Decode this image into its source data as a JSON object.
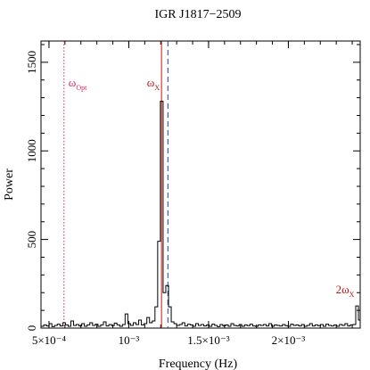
{
  "chart_data": {
    "type": "line",
    "title": "IGR J1817−2509",
    "xlabel": "Frequency (Hz)",
    "ylabel": "Power",
    "xlim": [
      0.00045,
      0.00245
    ],
    "ylim": [
      0,
      1620
    ],
    "x_ticks": [
      {
        "value": 0.0005,
        "label": "5×10⁻⁴"
      },
      {
        "value": 0.001,
        "label": "10⁻³"
      },
      {
        "value": 0.0015,
        "label": "1.5×10⁻³"
      },
      {
        "value": 0.002,
        "label": "2×10⁻³"
      }
    ],
    "y_ticks": [
      {
        "value": 0,
        "label": "0"
      },
      {
        "value": 500,
        "label": "500"
      },
      {
        "value": 1000,
        "label": "1000"
      },
      {
        "value": 1500,
        "label": "1500"
      }
    ],
    "grid": false,
    "series": [
      {
        "style": "histogram-step",
        "color": "#000000",
        "x": [
          0.00045,
          0.000467,
          0.000484,
          0.000501,
          0.000518,
          0.000535,
          0.000552,
          0.000569,
          0.000586,
          0.000603,
          0.00062,
          0.000637,
          0.000654,
          0.000671,
          0.000688,
          0.000705,
          0.000722,
          0.000739,
          0.000756,
          0.000773,
          0.00079,
          0.000807,
          0.000824,
          0.000841,
          0.000858,
          0.000875,
          0.000892,
          0.000909,
          0.000926,
          0.000943,
          0.00096,
          0.000977,
          0.000994,
          0.001011,
          0.001028,
          0.001045,
          0.001062,
          0.001079,
          0.001096,
          0.001113,
          0.00113,
          0.001147,
          0.001164,
          0.001181,
          0.001198,
          0.001215,
          0.001232,
          0.001249,
          0.001266,
          0.001283,
          0.0013,
          0.001317,
          0.001334,
          0.001351,
          0.001368,
          0.001385,
          0.001402,
          0.001419,
          0.001436,
          0.001453,
          0.00147,
          0.001487,
          0.001504,
          0.001521,
          0.001538,
          0.001555,
          0.001572,
          0.001589,
          0.001606,
          0.001623,
          0.00164,
          0.001657,
          0.001674,
          0.001691,
          0.001708,
          0.001725,
          0.001742,
          0.001759,
          0.001776,
          0.001793,
          0.00181,
          0.001827,
          0.001844,
          0.001861,
          0.001878,
          0.001895,
          0.001912,
          0.001929,
          0.001946,
          0.001963,
          0.00198,
          0.001997,
          0.002014,
          0.002031,
          0.002048,
          0.002065,
          0.002082,
          0.002099,
          0.002116,
          0.002133,
          0.00215,
          0.002167,
          0.002184,
          0.002201,
          0.002218,
          0.002235,
          0.002252,
          0.002269,
          0.002286,
          0.002303,
          0.00232,
          0.002337,
          0.002354,
          0.002371,
          0.002388,
          0.002405,
          0.002422,
          0.002439
        ],
        "y": [
          10,
          18,
          12,
          25,
          8,
          15,
          22,
          12,
          30,
          18,
          10,
          40,
          15,
          20,
          12,
          25,
          10,
          18,
          30,
          15,
          22,
          10,
          18,
          35,
          12,
          20,
          14,
          28,
          18,
          10,
          20,
          80,
          25,
          15,
          30,
          20,
          45,
          18,
          25,
          60,
          30,
          40,
          120,
          490,
          1280,
          200,
          240,
          120,
          35,
          25,
          15,
          20,
          30,
          12,
          22,
          18,
          10,
          25,
          15,
          20,
          12,
          18,
          10,
          22,
          15,
          8,
          20,
          12,
          18,
          10,
          25,
          15,
          12,
          20,
          10,
          18,
          14,
          22,
          12,
          10,
          18,
          15,
          20,
          12,
          25,
          10,
          18,
          15,
          12,
          20,
          14,
          10,
          22,
          15,
          18,
          12,
          20,
          10,
          15,
          25,
          12,
          18,
          14,
          20,
          10,
          22,
          15,
          12,
          18,
          10,
          20,
          15,
          25,
          12,
          18,
          20,
          125,
          45
        ]
      }
    ],
    "markers": [
      {
        "x": 0.000594,
        "label": "ω",
        "sub": "Opt",
        "style": "dotted",
        "color": "#e0206a"
      },
      {
        "x": 0.001205,
        "label": "ω",
        "sub": "X",
        "style": "solid",
        "color": "#cc1111"
      },
      {
        "x": 0.001245,
        "label": "",
        "sub": "",
        "style": "dashed",
        "color": "#3333aa"
      },
      {
        "x": 0.00243,
        "label": "2ω",
        "sub": "X",
        "style": "none",
        "color": "#cc1111"
      }
    ]
  }
}
